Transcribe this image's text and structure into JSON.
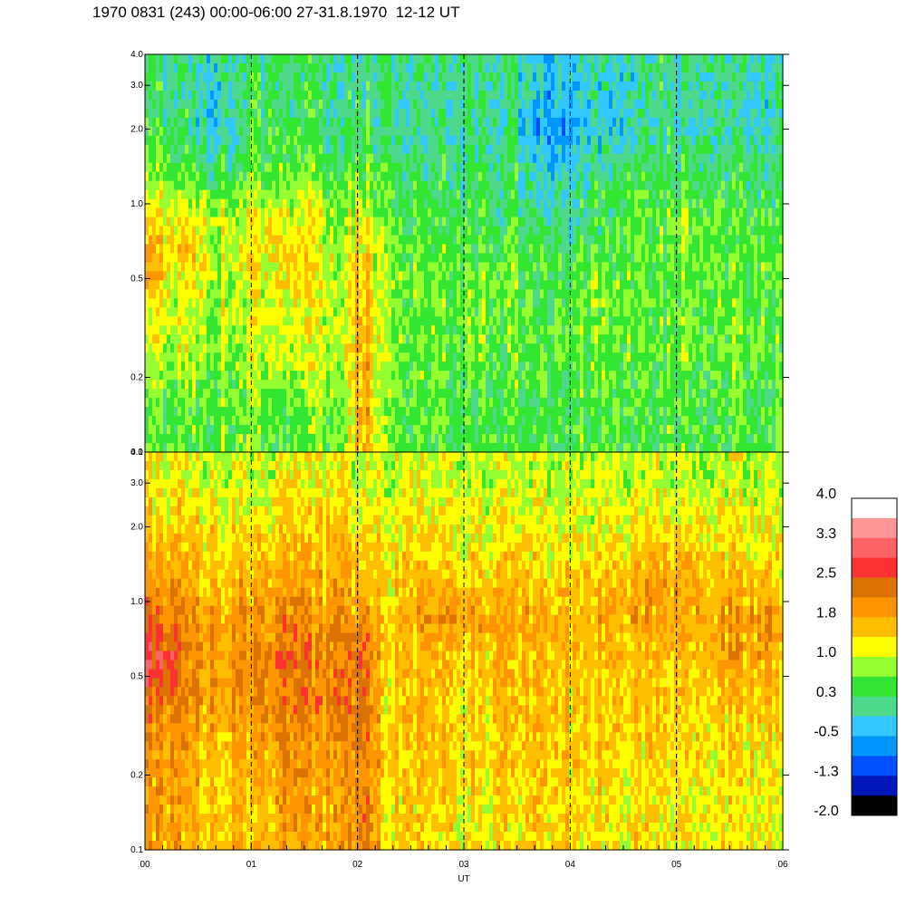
{
  "title": "1970 0831 (243) 00:00-06:00 27-31.8.1970  12-12 UT",
  "chart_data": {
    "type": "heatmap",
    "x_axis": {
      "label": "UT",
      "range": [
        0,
        6
      ],
      "tick_labels": [
        "00",
        "01",
        "02",
        "03",
        "04",
        "05",
        "06"
      ],
      "dashed_marks": [
        1,
        2,
        3,
        4,
        5
      ]
    },
    "y_axis": {
      "scale": "log",
      "range": [
        0.1,
        4.0
      ],
      "ticks": [
        0.1,
        0.2,
        0.5,
        1.0,
        2.0,
        3.0,
        4.0
      ],
      "tick_labels": [
        "0.1",
        "0.2",
        "0.5",
        "1.0",
        "2.0",
        "3.0",
        "4.0"
      ]
    },
    "panels": [
      {
        "name": "upper",
        "rows": [
          {
            "y": 0.15,
            "values": [
              0.4,
              0.4,
              0.5,
              0.5,
              0.6,
              0.6,
              0.6,
              0.5,
              0.5,
              0.6,
              0.7,
              0.8,
              1.9,
              0.7,
              0.6,
              0.5,
              0.5,
              0.4,
              0.4,
              0.4,
              0.4,
              0.5,
              0.5,
              0.4,
              0.5,
              0.5,
              0.4,
              0.5,
              0.4,
              0.5,
              0.5,
              0.4,
              0.5,
              0.5,
              0.5,
              0.5
            ]
          },
          {
            "y": 0.25,
            "values": [
              0.9,
              0.9,
              0.9,
              0.8,
              0.8,
              0.8,
              0.9,
              0.9,
              1.0,
              1.0,
              1.0,
              1.1,
              1.9,
              0.8,
              0.7,
              0.6,
              0.6,
              0.5,
              0.6,
              0.5,
              0.5,
              0.6,
              0.6,
              0.5,
              0.6,
              0.6,
              0.5,
              0.6,
              0.5,
              0.6,
              0.6,
              0.5,
              0.6,
              0.6,
              0.6,
              0.5
            ]
          },
          {
            "y": 0.4,
            "values": [
              1.1,
              1.1,
              1.0,
              1.0,
              0.9,
              0.9,
              1.0,
              1.0,
              1.1,
              1.1,
              1.1,
              1.1,
              1.8,
              0.8,
              0.7,
              0.6,
              0.6,
              0.6,
              0.6,
              0.6,
              0.6,
              0.6,
              0.6,
              0.6,
              0.7,
              0.7,
              0.6,
              0.6,
              0.6,
              0.6,
              0.6,
              0.6,
              0.7,
              0.7,
              0.6,
              0.6
            ]
          },
          {
            "y": 0.6,
            "values": [
              1.7,
              1.5,
              1.3,
              1.2,
              1.0,
              1.0,
              1.2,
              1.3,
              1.4,
              1.3,
              1.1,
              1.0,
              1.6,
              0.8,
              0.6,
              0.6,
              0.5,
              0.5,
              0.5,
              0.5,
              0.5,
              0.5,
              0.5,
              0.4,
              0.5,
              0.5,
              0.5,
              0.6,
              0.6,
              0.6,
              0.6,
              0.6,
              0.7,
              0.6,
              0.6,
              0.6
            ]
          },
          {
            "y": 0.85,
            "values": [
              1.2,
              1.3,
              1.3,
              1.2,
              1.0,
              0.9,
              1.1,
              1.2,
              1.2,
              1.1,
              0.9,
              0.9,
              1.2,
              0.6,
              0.5,
              0.4,
              0.4,
              0.3,
              0.3,
              0.3,
              0.3,
              0.2,
              0.2,
              0.1,
              0.2,
              0.3,
              0.4,
              0.5,
              0.6,
              0.7,
              0.8,
              0.6,
              0.5,
              0.5,
              0.5,
              0.5
            ]
          },
          {
            "y": 1.3,
            "values": [
              0.6,
              0.6,
              0.5,
              0.5,
              0.4,
              0.4,
              0.6,
              0.6,
              0.6,
              0.6,
              0.5,
              0.5,
              0.7,
              0.4,
              0.3,
              0.3,
              0.2,
              0.2,
              0.2,
              0.2,
              0.2,
              0.1,
              0.0,
              -0.2,
              0.1,
              0.1,
              0.2,
              0.3,
              0.3,
              0.3,
              0.3,
              0.3,
              0.3,
              0.3,
              0.2,
              0.3
            ]
          },
          {
            "y": 2.0,
            "values": [
              0.3,
              0.2,
              0.1,
              0.0,
              -0.1,
              0.0,
              0.3,
              0.3,
              0.3,
              0.3,
              0.2,
              0.2,
              0.3,
              0.1,
              0.0,
              0.0,
              0.0,
              0.0,
              0.0,
              0.0,
              0.0,
              -0.2,
              -0.5,
              -0.6,
              -0.3,
              -0.2,
              -0.4,
              0.0,
              0.1,
              0.1,
              0.0,
              0.1,
              0.0,
              0.0,
              -0.1,
              0.1
            ]
          },
          {
            "y": 3.2,
            "values": [
              0.2,
              0.1,
              0.1,
              0.0,
              0.0,
              0.1,
              0.2,
              0.2,
              0.2,
              0.2,
              0.2,
              0.1,
              0.2,
              0.1,
              0.1,
              0.1,
              0.1,
              0.0,
              0.1,
              0.1,
              0.1,
              0.0,
              -0.2,
              -0.3,
              -0.1,
              -0.1,
              -0.2,
              0.0,
              0.1,
              0.1,
              0.0,
              0.1,
              0.1,
              0.0,
              0.0,
              0.1
            ]
          }
        ]
      },
      {
        "name": "lower",
        "rows": [
          {
            "y": 0.15,
            "values": [
              1.8,
              1.8,
              1.7,
              1.6,
              1.5,
              1.6,
              1.7,
              1.7,
              1.8,
              1.8,
              1.7,
              1.7,
              2.4,
              1.5,
              1.4,
              1.4,
              1.3,
              1.3,
              1.3,
              1.3,
              1.3,
              1.3,
              1.4,
              1.4,
              1.4,
              1.4,
              1.3,
              1.3,
              1.3,
              1.3,
              1.3,
              1.3,
              1.3,
              1.2,
              1.2,
              1.1
            ]
          },
          {
            "y": 0.25,
            "values": [
              1.9,
              1.9,
              1.8,
              1.7,
              1.6,
              1.6,
              1.9,
              1.9,
              1.9,
              1.9,
              1.8,
              1.8,
              2.5,
              1.5,
              1.5,
              1.4,
              1.4,
              1.4,
              1.5,
              1.5,
              1.5,
              1.5,
              1.4,
              1.4,
              1.5,
              1.5,
              1.4,
              1.4,
              1.4,
              1.4,
              1.4,
              1.4,
              1.4,
              1.3,
              1.3,
              1.3
            ]
          },
          {
            "y": 0.4,
            "values": [
              2.2,
              2.1,
              2.0,
              2.0,
              1.9,
              1.9,
              2.1,
              2.1,
              2.0,
              2.1,
              2.1,
              2.1,
              2.6,
              1.5,
              1.5,
              1.5,
              1.4,
              1.4,
              1.5,
              1.5,
              1.5,
              1.5,
              1.5,
              1.4,
              1.5,
              1.5,
              1.5,
              1.6,
              1.6,
              1.5,
              1.5,
              1.5,
              1.5,
              1.5,
              1.5,
              1.5
            ]
          },
          {
            "y": 0.6,
            "values": [
              2.9,
              2.6,
              2.2,
              2.0,
              1.9,
              1.9,
              2.2,
              2.2,
              2.2,
              2.1,
              2.0,
              2.0,
              2.6,
              1.6,
              1.5,
              1.5,
              1.5,
              1.5,
              1.5,
              1.5,
              1.5,
              1.5,
              1.5,
              1.5,
              1.6,
              1.6,
              1.6,
              1.6,
              1.6,
              1.6,
              1.7,
              1.7,
              1.7,
              1.7,
              1.7,
              1.6
            ]
          },
          {
            "y": 0.85,
            "values": [
              2.4,
              2.2,
              2.0,
              1.9,
              1.8,
              1.8,
              2.0,
              2.0,
              2.0,
              1.9,
              1.8,
              1.8,
              2.2,
              1.6,
              1.6,
              1.8,
              1.9,
              1.9,
              1.9,
              1.9,
              1.8,
              1.7,
              1.6,
              1.6,
              1.7,
              1.7,
              1.7,
              1.8,
              1.8,
              1.8,
              1.8,
              1.8,
              1.9,
              1.9,
              2.0,
              1.8
            ]
          },
          {
            "y": 1.3,
            "values": [
              1.7,
              1.7,
              1.6,
              1.6,
              1.5,
              1.5,
              1.7,
              1.7,
              1.7,
              1.7,
              1.6,
              1.6,
              1.8,
              1.4,
              1.4,
              1.4,
              1.4,
              1.4,
              1.4,
              1.5,
              1.5,
              1.4,
              1.4,
              1.4,
              1.5,
              1.5,
              1.6,
              1.7,
              1.8,
              1.9,
              1.8,
              1.6,
              1.5,
              1.5,
              1.5,
              1.4
            ]
          },
          {
            "y": 2.0,
            "values": [
              1.5,
              1.4,
              1.4,
              1.4,
              1.3,
              1.3,
              1.4,
              1.4,
              1.4,
              1.4,
              1.4,
              1.4,
              1.5,
              1.3,
              1.2,
              1.2,
              1.2,
              1.2,
              1.2,
              1.2,
              1.2,
              1.1,
              1.1,
              1.1,
              1.2,
              1.2,
              1.2,
              1.3,
              1.3,
              1.3,
              1.3,
              1.3,
              1.3,
              1.2,
              1.2,
              1.2
            ]
          },
          {
            "y": 3.2,
            "values": [
              1.2,
              1.1,
              1.1,
              1.1,
              1.0,
              1.0,
              1.1,
              1.1,
              1.1,
              1.1,
              1.1,
              1.1,
              1.2,
              1.0,
              1.0,
              1.0,
              1.0,
              1.0,
              1.0,
              1.0,
              1.0,
              0.9,
              0.9,
              0.9,
              1.0,
              1.0,
              1.0,
              1.0,
              1.0,
              1.0,
              1.0,
              1.0,
              1.0,
              0.9,
              0.9,
              0.9
            ]
          }
        ]
      }
    ],
    "colorbar": {
      "range": [
        -2.0,
        4.0
      ],
      "labels": [
        "4.0",
        "3.3",
        "2.5",
        "1.8",
        "1.0",
        "0.3",
        "-0.5",
        "-1.3",
        "-2.0"
      ],
      "colors": [
        "#000000",
        "#0018b8",
        "#0050ff",
        "#0096ff",
        "#32c8ff",
        "#4cd98c",
        "#32e632",
        "#96ff32",
        "#ffff00",
        "#ffbe00",
        "#ff9600",
        "#dc7300",
        "#ff3232",
        "#ff6464",
        "#ff9696",
        "#ffffff"
      ]
    }
  }
}
